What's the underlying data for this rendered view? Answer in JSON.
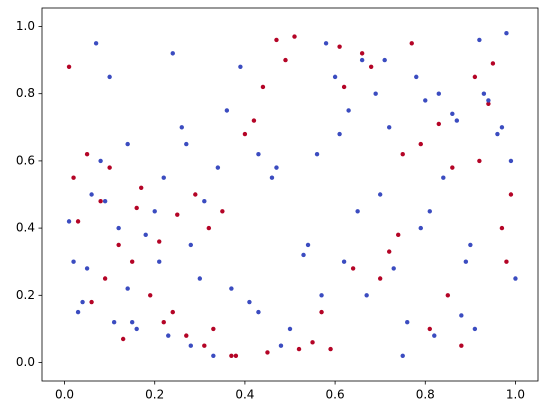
{
  "chart_data": {
    "type": "scatter",
    "xlim": [
      -0.05,
      1.05
    ],
    "ylim": [
      -0.055,
      1.055
    ],
    "xticks": [
      {
        "value": 0,
        "label": "0.0"
      },
      0.2,
      0.4,
      0.6,
      0.8,
      {
        "value": 1,
        "label": "1.0"
      }
    ],
    "yticks": [
      {
        "value": 0,
        "label": "0.0"
      },
      0.2,
      0.4,
      0.6,
      0.8,
      {
        "value": 1,
        "label": "1.0"
      }
    ],
    "grid": false,
    "series": [
      {
        "color": "#b40426",
        "x": [
          0.02,
          0.08,
          0.15,
          0.22,
          0.31,
          0.38,
          0.45,
          0.52,
          0.61,
          0.68,
          0.75,
          0.83,
          0.91,
          0.97,
          0.05,
          0.12,
          0.19,
          0.27,
          0.35,
          0.42,
          0.49,
          0.57,
          0.64,
          0.72,
          0.79,
          0.86,
          0.94,
          0.99,
          0.03,
          0.1,
          0.17,
          0.25,
          0.33,
          0.4,
          0.47,
          0.55,
          0.62,
          0.7,
          0.77,
          0.85,
          0.92,
          0.98,
          0.06,
          0.13,
          0.21,
          0.29,
          0.37,
          0.44,
          0.51,
          0.59,
          0.66,
          0.74,
          0.81,
          0.88,
          0.95,
          0.01,
          0.09,
          0.16,
          0.24,
          0.32
        ],
        "values": [
          0.55,
          0.48,
          0.3,
          0.12,
          0.05,
          0.02,
          0.03,
          0.04,
          0.94,
          0.88,
          0.62,
          0.71,
          0.85,
          0.4,
          0.62,
          0.35,
          0.2,
          0.08,
          0.45,
          0.72,
          0.9,
          0.15,
          0.28,
          0.33,
          0.65,
          0.58,
          0.77,
          0.5,
          0.42,
          0.58,
          0.52,
          0.44,
          0.1,
          0.68,
          0.96,
          0.06,
          0.82,
          0.25,
          0.95,
          0.2,
          0.6,
          0.3,
          0.18,
          0.07,
          0.36,
          0.5,
          0.02,
          0.82,
          0.97,
          0.04,
          0.92,
          0.38,
          0.1,
          0.05,
          0.89,
          0.88,
          0.25,
          0.46,
          0.15,
          0.4
        ]
      },
      {
        "color": "#3b4cc0",
        "x": [
          0.01,
          0.04,
          0.07,
          0.11,
          0.14,
          0.18,
          0.23,
          0.26,
          0.3,
          0.34,
          0.39,
          0.43,
          0.48,
          0.53,
          0.56,
          0.6,
          0.63,
          0.67,
          0.71,
          0.76,
          0.8,
          0.84,
          0.87,
          0.9,
          0.93,
          0.96,
          0.99,
          0.02,
          0.06,
          0.1,
          0.14,
          0.2,
          0.24,
          0.28,
          0.36,
          0.41,
          0.46,
          0.5,
          0.54,
          0.58,
          0.65,
          0.69,
          0.73,
          0.78,
          0.82,
          0.86,
          0.89,
          0.92,
          0.97,
          1.0,
          0.03,
          0.08,
          0.12,
          0.16,
          0.21,
          0.27,
          0.31,
          0.37,
          0.43,
          0.57,
          0.61,
          0.66,
          0.7,
          0.75,
          0.79,
          0.83,
          0.88,
          0.94,
          0.98,
          0.05,
          0.09,
          0.15,
          0.22,
          0.28,
          0.33,
          0.47,
          0.62,
          0.72,
          0.81,
          0.91
        ],
        "values": [
          0.42,
          0.18,
          0.95,
          0.12,
          0.65,
          0.38,
          0.08,
          0.7,
          0.25,
          0.58,
          0.88,
          0.15,
          0.05,
          0.32,
          0.62,
          0.85,
          0.75,
          0.2,
          0.9,
          0.12,
          0.78,
          0.55,
          0.72,
          0.35,
          0.8,
          0.68,
          0.6,
          0.3,
          0.5,
          0.85,
          0.22,
          0.45,
          0.92,
          0.05,
          0.75,
          0.18,
          0.55,
          0.1,
          0.35,
          0.95,
          0.45,
          0.8,
          0.28,
          0.85,
          0.08,
          0.74,
          0.3,
          0.96,
          0.7,
          0.25,
          0.15,
          0.6,
          0.4,
          0.1,
          0.3,
          0.65,
          0.48,
          0.22,
          0.62,
          0.2,
          0.68,
          0.9,
          0.5,
          0.02,
          0.4,
          0.8,
          0.14,
          0.78,
          0.98,
          0.28,
          0.48,
          0.12,
          0.55,
          0.35,
          0.02,
          0.58,
          0.3,
          0.7,
          0.45,
          0.1
        ]
      }
    ]
  }
}
